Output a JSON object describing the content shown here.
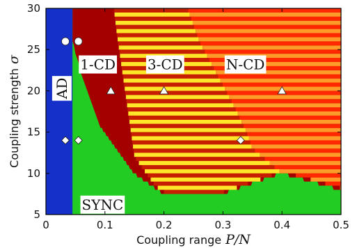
{
  "chart_data": {
    "type": "heatmap",
    "title": "",
    "xlabel": "Coupling range",
    "xlabel_symbol": "P/N",
    "ylabel": "Coupling strength",
    "ylabel_symbol": "σ",
    "xlim": [
      0,
      0.5
    ],
    "ylim": [
      5,
      30
    ],
    "xticks": [
      "0",
      "0.1",
      "0.2",
      "0.3",
      "0.4",
      "0.5"
    ],
    "yticks": [
      "5",
      "10",
      "15",
      "20",
      "25",
      "30"
    ],
    "colors": {
      "AD": "#1530c8",
      "SYNC": "#22cc22",
      "1-CD": "#a50000",
      "3-CD_stripe_a": "#ffe628",
      "3-CD_stripe_b": "#c81e00",
      "N-CD_stripe_a": "#ff2800",
      "N-CD_stripe_b": "#ff9b28"
    },
    "regions": [
      {
        "name": "AD",
        "label": "AD",
        "x_range": [
          0,
          0.045
        ],
        "y_range": [
          5,
          30
        ]
      },
      {
        "name": "SYNC",
        "label": "SYNC",
        "description_boundary_y_at_x": [
          [
            0.045,
            26
          ],
          [
            0.06,
            22
          ],
          [
            0.09,
            16
          ],
          [
            0.15,
            10
          ],
          [
            0.2,
            7.5
          ],
          [
            0.3,
            7.5
          ],
          [
            0.4,
            10
          ],
          [
            0.5,
            8
          ]
        ]
      },
      {
        "name": "1-CD",
        "label": "1-CD",
        "x_range": [
          0.045,
          0.245
        ]
      },
      {
        "name": "3-CD",
        "label": "3-CD",
        "x_range": [
          0.12,
          0.38
        ]
      },
      {
        "name": "N-CD",
        "label": "N-CD",
        "x_range": [
          0.24,
          0.5
        ]
      }
    ],
    "markers": [
      {
        "shape": "circle",
        "x": 0.033,
        "y": 26
      },
      {
        "shape": "circle",
        "x": 0.055,
        "y": 26
      },
      {
        "shape": "triangle",
        "x": 0.11,
        "y": 20
      },
      {
        "shape": "triangle",
        "x": 0.2,
        "y": 20
      },
      {
        "shape": "triangle",
        "x": 0.4,
        "y": 20
      },
      {
        "shape": "diamond",
        "x": 0.033,
        "y": 14
      },
      {
        "shape": "diamond",
        "x": 0.055,
        "y": 14
      },
      {
        "shape": "diamond",
        "x": 0.33,
        "y": 14
      }
    ],
    "label_positions": [
      {
        "text": "AD",
        "x": 0.027,
        "y": 20.3,
        "rotated": true
      },
      {
        "text": "1-CD",
        "x": 0.088,
        "y": 23.2
      },
      {
        "text": "3-CD",
        "x": 0.202,
        "y": 23.2
      },
      {
        "text": "N-CD",
        "x": 0.338,
        "y": 23.2
      },
      {
        "text": "SYNC",
        "x": 0.096,
        "y": 6.2
      }
    ]
  }
}
